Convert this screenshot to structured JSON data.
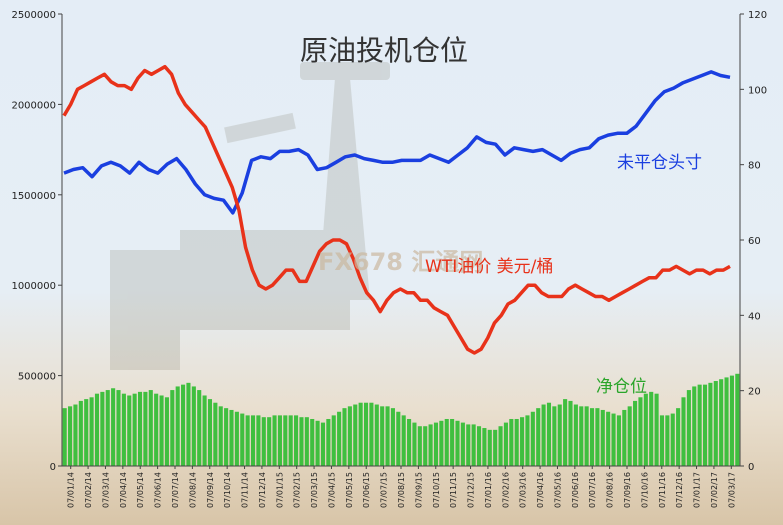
{
  "chart_data": {
    "type": "bar+line",
    "title": "原油投机仓位",
    "watermark": "FX678 汇通网",
    "y_left": {
      "min": 0,
      "max": 2500000,
      "ticks": [
        "0",
        "500000",
        "1000000",
        "1500000",
        "2000000",
        "2500000"
      ]
    },
    "y_right": {
      "min": 0,
      "max": 120,
      "ticks": [
        "0",
        "20",
        "40",
        "60",
        "80",
        "100",
        "120"
      ]
    },
    "x_labels": [
      "07/01/14",
      "07/02/14",
      "07/03/14",
      "07/04/14",
      "07/05/14",
      "07/06/14",
      "07/07/14",
      "07/08/14",
      "07/09/14",
      "07/10/14",
      "07/11/14",
      "07/12/14",
      "07/01/15",
      "07/02/15",
      "07/03/15",
      "07/04/15",
      "07/05/15",
      "07/06/15",
      "07/07/15",
      "07/08/15",
      "07/09/15",
      "07/10/15",
      "07/11/15",
      "07/12/15",
      "07/01/16",
      "07/02/16",
      "07/03/16",
      "07/04/16",
      "07/05/16",
      "07/06/16",
      "07/07/16",
      "07/08/16",
      "07/09/16",
      "07/10/16",
      "07/11/16",
      "07/12/16",
      "07/01/17",
      "07/02/17",
      "07/03/17"
    ],
    "series": [
      {
        "name": "未平仓头寸",
        "axis": "left",
        "kind": "line",
        "color": "#1a3fe0",
        "values": [
          1620000,
          1640000,
          1650000,
          1600000,
          1660000,
          1680000,
          1660000,
          1620000,
          1680000,
          1640000,
          1620000,
          1670000,
          1700000,
          1640000,
          1560000,
          1500000,
          1480000,
          1470000,
          1400000,
          1510000,
          1690000,
          1710000,
          1700000,
          1740000,
          1740000,
          1750000,
          1720000,
          1640000,
          1650000,
          1680000,
          1710000,
          1720000,
          1700000,
          1690000,
          1680000,
          1680000,
          1690000,
          1690000,
          1690000,
          1720000,
          1700000,
          1680000,
          1720000,
          1760000,
          1820000,
          1790000,
          1780000,
          1720000,
          1760000,
          1750000,
          1740000,
          1750000,
          1720000,
          1690000,
          1730000,
          1750000,
          1760000,
          1810000,
          1830000,
          1840000,
          1840000,
          1880000,
          1950000,
          2020000,
          2070000,
          2090000,
          2120000,
          2140000,
          2160000,
          2180000,
          2160000,
          2150000
        ]
      },
      {
        "name": "WTI油价 美元/桶",
        "axis": "right",
        "kind": "line",
        "color": "#e8321a",
        "values": [
          93,
          96,
          100,
          101,
          102,
          103,
          104,
          102,
          101,
          101,
          100,
          103,
          105,
          104,
          105,
          106,
          104,
          99,
          96,
          94,
          92,
          90,
          86,
          82,
          78,
          74,
          68,
          58,
          52,
          48,
          47,
          48,
          50,
          52,
          52,
          49,
          49,
          53,
          57,
          59,
          60,
          60,
          59,
          55,
          50,
          46,
          44,
          41,
          44,
          46,
          47,
          46,
          46,
          44,
          44,
          42,
          41,
          40,
          37,
          34,
          31,
          30,
          31,
          34,
          38,
          40,
          43,
          44,
          46,
          48,
          48,
          46,
          45,
          45,
          45,
          47,
          48,
          47,
          46,
          45,
          45,
          44,
          45,
          46,
          47,
          48,
          49,
          50,
          50,
          52,
          52,
          53,
          52,
          51,
          52,
          52,
          51,
          52,
          52,
          53
        ]
      },
      {
        "name": "净仓位",
        "axis": "left",
        "kind": "bar",
        "color": "#3fbf3f",
        "values": [
          320000,
          330000,
          340000,
          360000,
          370000,
          380000,
          400000,
          410000,
          420000,
          430000,
          420000,
          400000,
          390000,
          400000,
          410000,
          410000,
          420000,
          400000,
          390000,
          380000,
          420000,
          440000,
          450000,
          460000,
          440000,
          420000,
          390000,
          370000,
          350000,
          330000,
          320000,
          310000,
          300000,
          290000,
          280000,
          280000,
          280000,
          270000,
          270000,
          280000,
          280000,
          280000,
          280000,
          280000,
          270000,
          270000,
          260000,
          250000,
          240000,
          260000,
          280000,
          300000,
          320000,
          330000,
          340000,
          350000,
          350000,
          350000,
          340000,
          330000,
          330000,
          320000,
          300000,
          280000,
          260000,
          240000,
          220000,
          220000,
          230000,
          240000,
          250000,
          260000,
          260000,
          250000,
          240000,
          230000,
          230000,
          220000,
          210000,
          200000,
          200000,
          220000,
          240000,
          260000,
          260000,
          270000,
          280000,
          300000,
          320000,
          340000,
          350000,
          330000,
          340000,
          370000,
          360000,
          340000,
          330000,
          330000,
          320000,
          320000,
          310000,
          300000,
          290000,
          280000,
          310000,
          330000,
          360000,
          380000,
          400000,
          410000,
          400000,
          280000,
          280000,
          290000,
          320000,
          380000,
          420000,
          440000,
          450000,
          450000,
          460000,
          470000,
          480000,
          490000,
          500000,
          510000
        ]
      }
    ]
  }
}
